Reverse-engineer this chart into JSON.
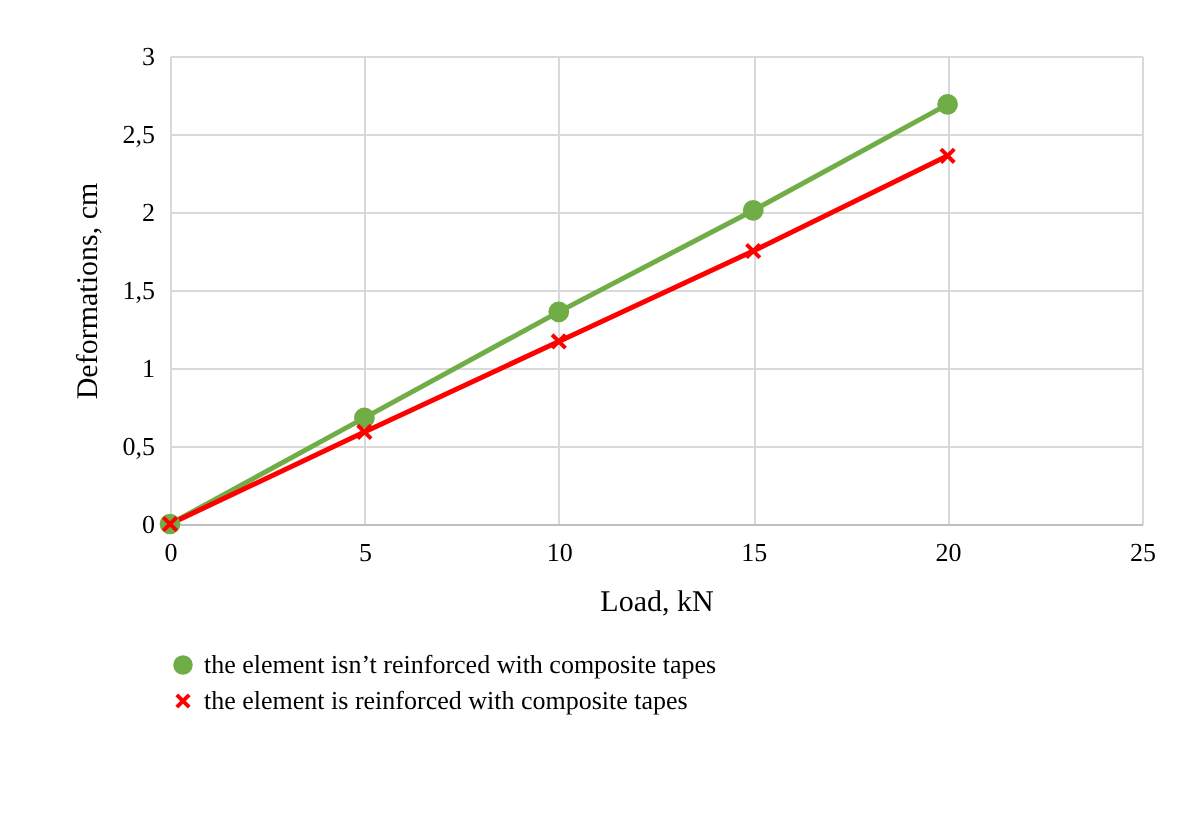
{
  "chart_data": {
    "type": "line",
    "xlabel": "Load, kN",
    "ylabel": "Deformations, cm",
    "x": [
      0,
      5,
      10,
      15,
      20
    ],
    "series": [
      {
        "name": "the element  isn’t reinforced with  composite tapes",
        "color": "#70ad47",
        "marker": "circle",
        "values": [
          0,
          0.68,
          1.36,
          2.01,
          2.69
        ]
      },
      {
        "name": "the element is reinforced with composite tapes",
        "color": "#ff0000",
        "marker": "cross",
        "values": [
          0,
          0.59,
          1.17,
          1.75,
          2.36
        ]
      }
    ],
    "xlim": [
      0,
      25
    ],
    "xticks": [
      0,
      5,
      10,
      15,
      20,
      25
    ],
    "ylim": [
      0,
      3
    ],
    "yticks": [
      0,
      {
        "value": 0.5,
        "label": "0,5"
      },
      1,
      {
        "value": 1.5,
        "label": "1,5"
      },
      2,
      {
        "value": 2.5,
        "label": "2,5"
      },
      3
    ],
    "grid": true,
    "legend": "bottom",
    "line_style": "solid"
  }
}
